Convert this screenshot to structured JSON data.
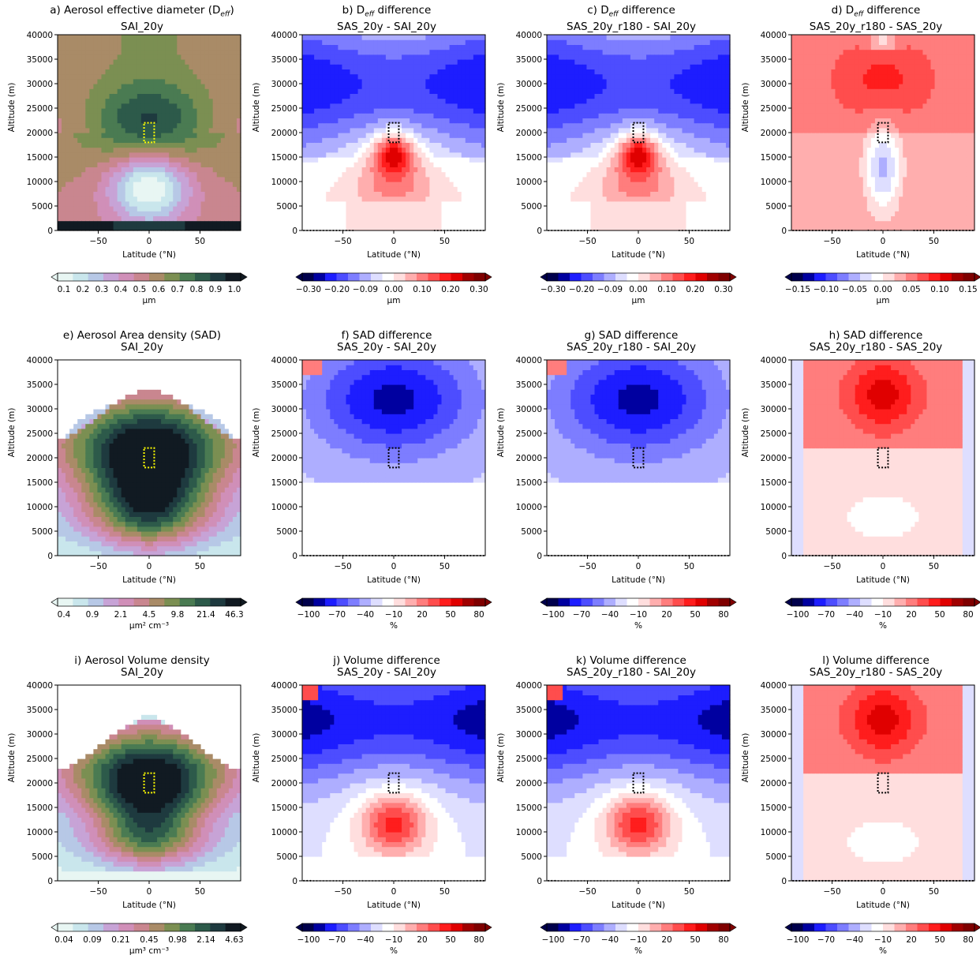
{
  "figure": {
    "panels": [
      {
        "id": "a",
        "title_line1": "a) Aerosol effective diameter (D",
        "title_sub": "eff",
        "title_close": ")",
        "title_line2": "SAI_20y",
        "cmap": "cubehelix",
        "cb_ticks": [
          "0.1",
          "0.2",
          "0.3",
          "0.4",
          "0.5",
          "0.6",
          "0.7",
          "0.8",
          "0.9",
          "1.0"
        ],
        "cb_unit": "μm",
        "has_box": true,
        "box_color": "#ffff00"
      },
      {
        "id": "b",
        "title_line1": "b) D",
        "title_sub": "eff",
        "title_close": " difference",
        "title_line2": "SAS_20y - SAI_20y",
        "cmap": "seismic",
        "cb_ticks": [
          "−0.30",
          "−0.20",
          "−0.09",
          "0.00",
          "0.10",
          "0.20",
          "0.30"
        ],
        "cb_unit": "μm",
        "has_box": true,
        "box_color": "#000000"
      },
      {
        "id": "c",
        "title_line1": "c) D",
        "title_sub": "eff",
        "title_close": " difference",
        "title_line2": "SAS_20y_r180 - SAI_20y",
        "cmap": "seismic",
        "cb_ticks": [
          "−0.30",
          "−0.20",
          "−0.09",
          "0.00",
          "0.10",
          "0.20",
          "0.30"
        ],
        "cb_unit": "μm",
        "has_box": true,
        "box_color": "#000000"
      },
      {
        "id": "d",
        "title_line1": "d) D",
        "title_sub": "eff",
        "title_close": " difference",
        "title_line2": "SAS_20y_r180 - SAS_20y",
        "cmap": "seismic",
        "cb_ticks": [
          "−0.15",
          "−0.10",
          "−0.05",
          "0.00",
          "0.05",
          "0.10",
          "0.15"
        ],
        "cb_unit": "μm",
        "has_box": true,
        "box_color": "#000000"
      },
      {
        "id": "e",
        "title_line1": "e) Aerosol Area density (SAD)",
        "title_sub": "",
        "title_close": "",
        "title_line2": "SAI_20y",
        "cmap": "cubehelix",
        "cb_ticks": [
          "0.4",
          "0.9",
          "2.1",
          "4.5",
          "9.8",
          "21.4",
          "46.3"
        ],
        "cb_unit": "μm² cm⁻³",
        "has_box": true,
        "box_color": "#ffff00"
      },
      {
        "id": "f",
        "title_line1": "f) SAD difference",
        "title_sub": "",
        "title_close": "",
        "title_line2": "SAS_20y - SAI_20y",
        "cmap": "seismic",
        "cb_ticks": [
          "−100",
          "−70",
          "−40",
          "−10",
          "20",
          "50",
          "80"
        ],
        "cb_unit": "%",
        "has_box": true,
        "box_color": "#000000"
      },
      {
        "id": "g",
        "title_line1": "g) SAD difference",
        "title_sub": "",
        "title_close": "",
        "title_line2": "SAS_20y_r180 - SAI_20y",
        "cmap": "seismic",
        "cb_ticks": [
          "−100",
          "−70",
          "−40",
          "−10",
          "20",
          "50",
          "80"
        ],
        "cb_unit": "%",
        "has_box": true,
        "box_color": "#000000"
      },
      {
        "id": "h",
        "title_line1": "h) SAD difference",
        "title_sub": "",
        "title_close": "",
        "title_line2": "SAS_20y_r180 - SAS_20y",
        "cmap": "seismic",
        "cb_ticks": [
          "−100",
          "−70",
          "−40",
          "−10",
          "20",
          "50",
          "80"
        ],
        "cb_unit": "%",
        "has_box": true,
        "box_color": "#000000"
      },
      {
        "id": "i",
        "title_line1": "i) Aerosol Volume density",
        "title_sub": "",
        "title_close": "",
        "title_line2": "SAI_20y",
        "cmap": "cubehelix",
        "cb_ticks": [
          "0.04",
          "0.09",
          "0.21",
          "0.45",
          "0.98",
          "2.14",
          "4.63"
        ],
        "cb_unit": "μm³ cm⁻³",
        "has_box": true,
        "box_color": "#ffff00"
      },
      {
        "id": "j",
        "title_line1": "j) Volume difference",
        "title_sub": "",
        "title_close": "",
        "title_line2": "SAS_20y - SAI_20y",
        "cmap": "seismic",
        "cb_ticks": [
          "−100",
          "−70",
          "−40",
          "−10",
          "20",
          "50",
          "80"
        ],
        "cb_unit": "%",
        "has_box": true,
        "box_color": "#000000"
      },
      {
        "id": "k",
        "title_line1": "k) Volume difference",
        "title_sub": "",
        "title_close": "",
        "title_line2": "SAS_20y_r180 - SAI_20y",
        "cmap": "seismic",
        "cb_ticks": [
          "−100",
          "−70",
          "−40",
          "−10",
          "20",
          "50",
          "80"
        ],
        "cb_unit": "%",
        "has_box": true,
        "box_color": "#000000"
      },
      {
        "id": "l",
        "title_line1": "l) Volume difference",
        "title_sub": "",
        "title_close": "",
        "title_line2": "SAS_20y_r180 - SAS_20y",
        "cmap": "seismic",
        "cb_ticks": [
          "−100",
          "−70",
          "−40",
          "−10",
          "20",
          "50",
          "80"
        ],
        "cb_unit": "%",
        "has_box": true,
        "box_color": "#000000"
      }
    ]
  },
  "chart_data": {
    "type": "heatmap",
    "xlabel": "Latitude (°N)",
    "ylabel": "Altitude (m)",
    "xlim": [
      -90,
      90
    ],
    "ylim": [
      0,
      40000
    ],
    "xticks": [
      -50,
      0,
      50
    ],
    "yticks": [
      0,
      5000,
      10000,
      15000,
      20000,
      25000,
      30000,
      35000,
      40000
    ],
    "injection_box": {
      "lat": [
        -5,
        5
      ],
      "alt": [
        18000,
        22000
      ]
    },
    "stippling": "hatched dots mark non-significant regions",
    "colors": {
      "cubehelix": [
        "#e8f6f3",
        "#c9e6ec",
        "#b7c8e6",
        "#c7a3d6",
        "#d08fb8",
        "#c9868f",
        "#a98b67",
        "#7b8f52",
        "#4a7b52",
        "#2d5a4a",
        "#1e3a3f",
        "#111a22"
      ],
      "seismic": [
        "#00004c",
        "#0000a0",
        "#1d1dff",
        "#4d4dff",
        "#7d7dff",
        "#aeaeff",
        "#dedeff",
        "#ffffff",
        "#ffdede",
        "#ffaeae",
        "#ff7d7d",
        "#ff4d4d",
        "#ff1d1d",
        "#e00000",
        "#a00000",
        "#7f0000"
      ]
    },
    "fields": [
      {
        "panel": "a",
        "kind": "deff",
        "value_at_center_low": 0.1,
        "value_at_top": 0.5
      },
      {
        "panel": "b",
        "kind": "diff",
        "value_surface_tropics": 0.05,
        "value_plume": 0.25,
        "value_upper": -0.2
      },
      {
        "panel": "c",
        "kind": "diff",
        "value_surface_tropics": 0.05,
        "value_plume": 0.2,
        "value_upper": -0.15
      },
      {
        "panel": "d",
        "kind": "diff_pos",
        "value_upper": 0.08,
        "value_plume": -0.08
      },
      {
        "panel": "e",
        "kind": "sad",
        "peak": 46.3
      },
      {
        "panel": "f",
        "kind": "pct_neg",
        "value_upper": -70,
        "value_lower": -10
      },
      {
        "panel": "g",
        "kind": "pct_neg",
        "value_upper": -60,
        "value_lower": -10
      },
      {
        "panel": "h",
        "kind": "pct_pos",
        "value_upper": 50,
        "value_lower": 10
      },
      {
        "panel": "i",
        "kind": "vol",
        "peak": 4.63
      },
      {
        "panel": "j",
        "kind": "pct_mixed",
        "value_upper": -80,
        "value_plume": 40
      },
      {
        "panel": "k",
        "kind": "pct_mixed",
        "value_upper": -70,
        "value_plume": 30
      },
      {
        "panel": "l",
        "kind": "pct_pos",
        "value_upper": 60,
        "value_lower": 5
      }
    ]
  }
}
